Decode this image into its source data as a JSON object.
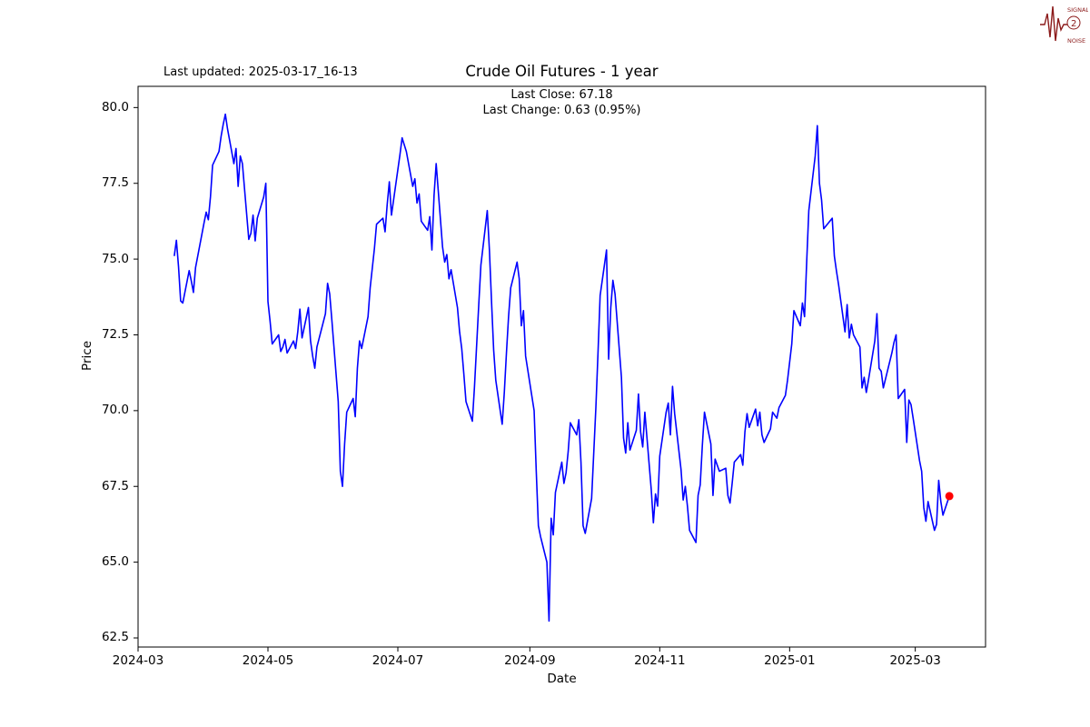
{
  "header": {
    "last_updated": "Last updated: 2025-03-17_16-13",
    "last_close_line": "Last Close: 67.18",
    "last_change_line": "Last Change: 0.63 (0.95%)"
  },
  "logo": {
    "line1": "SIGNAL",
    "line2": "2",
    "line3": "NOISE",
    "color": "#8b1a1a"
  },
  "chart_data": {
    "type": "line",
    "title": "Crude Oil Futures - 1 year",
    "xlabel": "Date",
    "ylabel": "Price",
    "legend": "none",
    "grid": false,
    "line_color": "#0000ff",
    "xlim": [
      "2024-03-01",
      "2025-04-03"
    ],
    "ylim": [
      62.2,
      80.7
    ],
    "y_ticks": [
      62.5,
      65.0,
      67.5,
      70.0,
      72.5,
      75.0,
      77.5,
      80.0
    ],
    "x_ticks": [
      {
        "label": "2024-03",
        "date": "2024-03-01"
      },
      {
        "label": "2024-05",
        "date": "2024-05-01"
      },
      {
        "label": "2024-07",
        "date": "2024-07-01"
      },
      {
        "label": "2024-09",
        "date": "2024-09-01"
      },
      {
        "label": "2024-11",
        "date": "2024-11-01"
      },
      {
        "label": "2025-01",
        "date": "2025-01-01"
      },
      {
        "label": "2025-03",
        "date": "2025-03-01"
      }
    ],
    "last_point": {
      "date": "2025-03-17",
      "value": 67.18,
      "color": "#ff0000"
    },
    "last_close": 67.18,
    "last_change": 0.63,
    "last_change_pct": 0.95,
    "points": [
      [
        "2024-03-18",
        75.1
      ],
      [
        "2024-03-19",
        75.62
      ],
      [
        "2024-03-20",
        74.75
      ],
      [
        "2024-03-21",
        73.62
      ],
      [
        "2024-03-22",
        73.55
      ],
      [
        "2024-03-25",
        74.62
      ],
      [
        "2024-03-26",
        74.28
      ],
      [
        "2024-03-27",
        73.9
      ],
      [
        "2024-03-28",
        74.72
      ],
      [
        "2024-04-01",
        76.2
      ],
      [
        "2024-04-02",
        76.55
      ],
      [
        "2024-04-03",
        76.3
      ],
      [
        "2024-04-04",
        77.05
      ],
      [
        "2024-04-05",
        78.1
      ],
      [
        "2024-04-08",
        78.55
      ],
      [
        "2024-04-09",
        79.05
      ],
      [
        "2024-04-10",
        79.45
      ],
      [
        "2024-04-11",
        79.78
      ],
      [
        "2024-04-12",
        79.3
      ],
      [
        "2024-04-15",
        78.15
      ],
      [
        "2024-04-16",
        78.65
      ],
      [
        "2024-04-17",
        77.4
      ],
      [
        "2024-04-18",
        78.4
      ],
      [
        "2024-04-19",
        78.15
      ],
      [
        "2024-04-22",
        75.65
      ],
      [
        "2024-04-23",
        75.85
      ],
      [
        "2024-04-24",
        76.45
      ],
      [
        "2024-04-25",
        75.6
      ],
      [
        "2024-04-26",
        76.35
      ],
      [
        "2024-04-29",
        77.05
      ],
      [
        "2024-04-30",
        77.5
      ],
      [
        "2024-05-01",
        73.6
      ],
      [
        "2024-05-02",
        72.95
      ],
      [
        "2024-05-03",
        72.2
      ],
      [
        "2024-05-06",
        72.5
      ],
      [
        "2024-05-07",
        71.95
      ],
      [
        "2024-05-08",
        72.1
      ],
      [
        "2024-05-09",
        72.35
      ],
      [
        "2024-05-10",
        71.9
      ],
      [
        "2024-05-13",
        72.3
      ],
      [
        "2024-05-14",
        72.05
      ],
      [
        "2024-05-15",
        72.6
      ],
      [
        "2024-05-16",
        73.35
      ],
      [
        "2024-05-17",
        72.4
      ],
      [
        "2024-05-20",
        73.4
      ],
      [
        "2024-05-21",
        72.3
      ],
      [
        "2024-05-22",
        71.8
      ],
      [
        "2024-05-23",
        71.4
      ],
      [
        "2024-05-24",
        72.1
      ],
      [
        "2024-05-28",
        73.2
      ],
      [
        "2024-05-29",
        74.2
      ],
      [
        "2024-05-30",
        73.85
      ],
      [
        "2024-05-31",
        73.0
      ],
      [
        "2024-06-03",
        70.3
      ],
      [
        "2024-06-04",
        68.0
      ],
      [
        "2024-06-05",
        67.5
      ],
      [
        "2024-06-06",
        68.9
      ],
      [
        "2024-06-07",
        69.95
      ],
      [
        "2024-06-10",
        70.4
      ],
      [
        "2024-06-11",
        69.8
      ],
      [
        "2024-06-12",
        71.4
      ],
      [
        "2024-06-13",
        72.3
      ],
      [
        "2024-06-14",
        72.05
      ],
      [
        "2024-06-17",
        73.1
      ],
      [
        "2024-06-18",
        74.05
      ],
      [
        "2024-06-20",
        75.35
      ],
      [
        "2024-06-21",
        76.15
      ],
      [
        "2024-06-24",
        76.35
      ],
      [
        "2024-06-25",
        75.9
      ],
      [
        "2024-06-26",
        76.8
      ],
      [
        "2024-06-27",
        77.55
      ],
      [
        "2024-06-28",
        76.45
      ],
      [
        "2024-07-01",
        77.95
      ],
      [
        "2024-07-02",
        78.45
      ],
      [
        "2024-07-03",
        79.0
      ],
      [
        "2024-07-05",
        78.55
      ],
      [
        "2024-07-08",
        77.4
      ],
      [
        "2024-07-09",
        77.65
      ],
      [
        "2024-07-10",
        76.85
      ],
      [
        "2024-07-11",
        77.15
      ],
      [
        "2024-07-12",
        76.25
      ],
      [
        "2024-07-15",
        75.95
      ],
      [
        "2024-07-16",
        76.4
      ],
      [
        "2024-07-17",
        75.3
      ],
      [
        "2024-07-18",
        77.1
      ],
      [
        "2024-07-19",
        78.15
      ],
      [
        "2024-07-22",
        75.4
      ],
      [
        "2024-07-23",
        74.9
      ],
      [
        "2024-07-24",
        75.15
      ],
      [
        "2024-07-25",
        74.35
      ],
      [
        "2024-07-26",
        74.65
      ],
      [
        "2024-07-29",
        73.4
      ],
      [
        "2024-07-30",
        72.6
      ],
      [
        "2024-07-31",
        72.05
      ],
      [
        "2024-08-01",
        71.2
      ],
      [
        "2024-08-02",
        70.3
      ],
      [
        "2024-08-05",
        69.65
      ],
      [
        "2024-08-06",
        70.8
      ],
      [
        "2024-08-07",
        72.15
      ],
      [
        "2024-08-08",
        73.5
      ],
      [
        "2024-08-09",
        74.8
      ],
      [
        "2024-08-12",
        76.6
      ],
      [
        "2024-08-13",
        75.3
      ],
      [
        "2024-08-14",
        73.6
      ],
      [
        "2024-08-15",
        72.0
      ],
      [
        "2024-08-16",
        71.0
      ],
      [
        "2024-08-19",
        69.55
      ],
      [
        "2024-08-20",
        70.6
      ],
      [
        "2024-08-21",
        71.9
      ],
      [
        "2024-08-22",
        73.1
      ],
      [
        "2024-08-23",
        74.05
      ],
      [
        "2024-08-26",
        74.9
      ],
      [
        "2024-08-27",
        74.35
      ],
      [
        "2024-08-28",
        72.8
      ],
      [
        "2024-08-29",
        73.3
      ],
      [
        "2024-08-30",
        71.8
      ],
      [
        "2024-09-03",
        70.0
      ],
      [
        "2024-09-04",
        68.0
      ],
      [
        "2024-09-05",
        66.2
      ],
      [
        "2024-09-06",
        65.85
      ],
      [
        "2024-09-09",
        65.0
      ],
      [
        "2024-09-10",
        63.06
      ],
      [
        "2024-09-11",
        66.45
      ],
      [
        "2024-09-12",
        65.9
      ],
      [
        "2024-09-13",
        67.3
      ],
      [
        "2024-09-16",
        68.3
      ],
      [
        "2024-09-17",
        67.6
      ],
      [
        "2024-09-18",
        67.95
      ],
      [
        "2024-09-19",
        68.65
      ],
      [
        "2024-09-20",
        69.6
      ],
      [
        "2024-09-23",
        69.2
      ],
      [
        "2024-09-24",
        69.7
      ],
      [
        "2024-09-25",
        68.3
      ],
      [
        "2024-09-26",
        66.2
      ],
      [
        "2024-09-27",
        65.95
      ],
      [
        "2024-09-30",
        67.1
      ],
      [
        "2024-10-01",
        68.6
      ],
      [
        "2024-10-02",
        70.1
      ],
      [
        "2024-10-03",
        71.9
      ],
      [
        "2024-10-04",
        73.8
      ],
      [
        "2024-10-07",
        75.3
      ],
      [
        "2024-10-08",
        71.7
      ],
      [
        "2024-10-09",
        73.4
      ],
      [
        "2024-10-10",
        74.3
      ],
      [
        "2024-10-11",
        73.85
      ],
      [
        "2024-10-14",
        71.1
      ],
      [
        "2024-10-15",
        69.1
      ],
      [
        "2024-10-16",
        68.6
      ],
      [
        "2024-10-17",
        69.6
      ],
      [
        "2024-10-18",
        68.7
      ],
      [
        "2024-10-21",
        69.35
      ],
      [
        "2024-10-22",
        70.55
      ],
      [
        "2024-10-23",
        69.3
      ],
      [
        "2024-10-24",
        68.8
      ],
      [
        "2024-10-25",
        69.95
      ],
      [
        "2024-10-28",
        67.4
      ],
      [
        "2024-10-29",
        66.3
      ],
      [
        "2024-10-30",
        67.25
      ],
      [
        "2024-10-31",
        66.85
      ],
      [
        "2024-11-01",
        68.5
      ],
      [
        "2024-11-04",
        69.95
      ],
      [
        "2024-11-05",
        70.25
      ],
      [
        "2024-11-06",
        69.2
      ],
      [
        "2024-11-07",
        70.8
      ],
      [
        "2024-11-08",
        69.9
      ],
      [
        "2024-11-11",
        68.05
      ],
      [
        "2024-11-12",
        67.05
      ],
      [
        "2024-11-13",
        67.5
      ],
      [
        "2024-11-14",
        66.85
      ],
      [
        "2024-11-15",
        66.05
      ],
      [
        "2024-11-18",
        65.65
      ],
      [
        "2024-11-19",
        67.2
      ],
      [
        "2024-11-20",
        67.55
      ],
      [
        "2024-11-21",
        68.85
      ],
      [
        "2024-11-22",
        69.95
      ],
      [
        "2024-11-25",
        68.9
      ],
      [
        "2024-11-26",
        67.2
      ],
      [
        "2024-11-27",
        68.4
      ],
      [
        "2024-11-29",
        68.0
      ],
      [
        "2024-12-02",
        68.1
      ],
      [
        "2024-12-03",
        67.2
      ],
      [
        "2024-12-04",
        66.95
      ],
      [
        "2024-12-05",
        67.6
      ],
      [
        "2024-12-06",
        68.3
      ],
      [
        "2024-12-09",
        68.55
      ],
      [
        "2024-12-10",
        68.2
      ],
      [
        "2024-12-11",
        69.3
      ],
      [
        "2024-12-12",
        69.9
      ],
      [
        "2024-12-13",
        69.45
      ],
      [
        "2024-12-16",
        70.05
      ],
      [
        "2024-12-17",
        69.5
      ],
      [
        "2024-12-18",
        69.95
      ],
      [
        "2024-12-19",
        69.2
      ],
      [
        "2024-12-20",
        68.95
      ],
      [
        "2024-12-23",
        69.4
      ],
      [
        "2024-12-24",
        69.95
      ],
      [
        "2024-12-26",
        69.75
      ],
      [
        "2024-12-27",
        70.1
      ],
      [
        "2024-12-30",
        70.5
      ],
      [
        "2024-12-31",
        71.0
      ],
      [
        "2025-01-02",
        72.2
      ],
      [
        "2025-01-03",
        73.3
      ],
      [
        "2025-01-06",
        72.8
      ],
      [
        "2025-01-07",
        73.55
      ],
      [
        "2025-01-08",
        73.1
      ],
      [
        "2025-01-09",
        74.9
      ],
      [
        "2025-01-10",
        76.6
      ],
      [
        "2025-01-13",
        78.4
      ],
      [
        "2025-01-14",
        79.4
      ],
      [
        "2025-01-15",
        77.5
      ],
      [
        "2025-01-16",
        76.95
      ],
      [
        "2025-01-17",
        76.0
      ],
      [
        "2025-01-21",
        76.35
      ],
      [
        "2025-01-22",
        75.1
      ],
      [
        "2025-01-23",
        74.6
      ],
      [
        "2025-01-24",
        74.15
      ],
      [
        "2025-01-27",
        72.6
      ],
      [
        "2025-01-28",
        73.5
      ],
      [
        "2025-01-29",
        72.4
      ],
      [
        "2025-01-30",
        72.85
      ],
      [
        "2025-01-31",
        72.5
      ],
      [
        "2025-02-03",
        72.1
      ],
      [
        "2025-02-04",
        70.75
      ],
      [
        "2025-02-05",
        71.1
      ],
      [
        "2025-02-06",
        70.6
      ],
      [
        "2025-02-07",
        71.0
      ],
      [
        "2025-02-10",
        72.3
      ],
      [
        "2025-02-11",
        73.2
      ],
      [
        "2025-02-12",
        71.4
      ],
      [
        "2025-02-13",
        71.3
      ],
      [
        "2025-02-14",
        70.75
      ],
      [
        "2025-02-18",
        71.9
      ],
      [
        "2025-02-19",
        72.25
      ],
      [
        "2025-02-20",
        72.5
      ],
      [
        "2025-02-21",
        70.4
      ],
      [
        "2025-02-24",
        70.7
      ],
      [
        "2025-02-25",
        68.95
      ],
      [
        "2025-02-26",
        70.35
      ],
      [
        "2025-02-27",
        70.2
      ],
      [
        "2025-02-28",
        69.75
      ],
      [
        "2025-03-03",
        68.35
      ],
      [
        "2025-03-04",
        68.0
      ],
      [
        "2025-03-05",
        66.8
      ],
      [
        "2025-03-06",
        66.35
      ],
      [
        "2025-03-07",
        67.0
      ],
      [
        "2025-03-10",
        66.05
      ],
      [
        "2025-03-11",
        66.25
      ],
      [
        "2025-03-12",
        67.7
      ],
      [
        "2025-03-13",
        67.0
      ],
      [
        "2025-03-14",
        66.55
      ],
      [
        "2025-03-17",
        67.18
      ]
    ]
  }
}
